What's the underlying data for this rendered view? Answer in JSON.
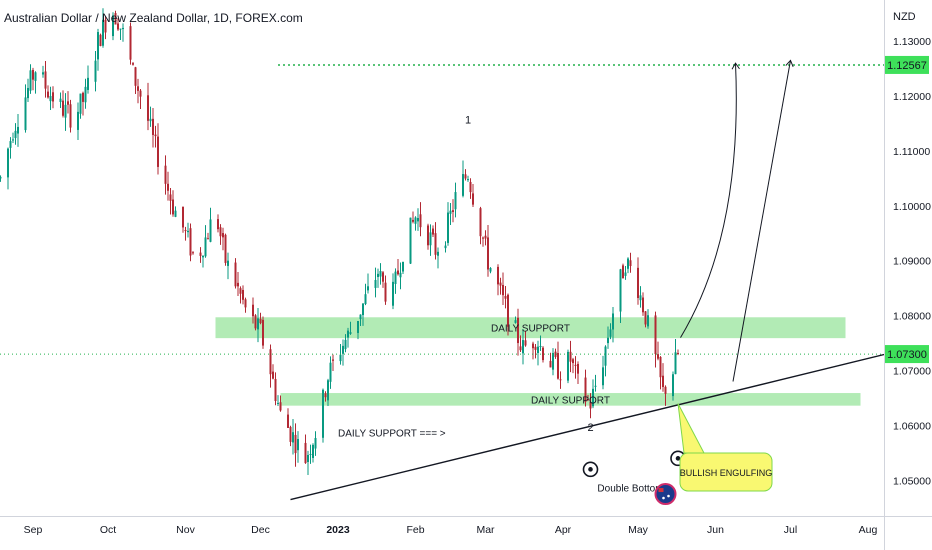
{
  "header": {
    "title": "Australian Dollar / New Zealand Dollar, 1D, FOREX.com",
    "currency": "NZD"
  },
  "colors": {
    "bull": "#089981",
    "bear": "#b22833",
    "zone": "#a5e8a8",
    "target_line": "#22b14c",
    "price_label": "#3ee05a",
    "callout": "#f9f871"
  },
  "chart_data": {
    "type": "candlestick",
    "symbol": "AUDNZD",
    "timeframe": "1D",
    "y_axis": {
      "ylim": [
        1.0435,
        1.1375
      ],
      "ticks": [
        "1.13000",
        "1.12000",
        "1.11000",
        "1.10000",
        "1.09000",
        "1.08000",
        "1.07000",
        "1.06000",
        "1.05000"
      ]
    },
    "x_axis": {
      "ticks": [
        {
          "label": "Sep",
          "date": "2022-09-01"
        },
        {
          "label": "Oct",
          "date": "2022-10-01"
        },
        {
          "label": "Nov",
          "date": "2022-11-01"
        },
        {
          "label": "Dec",
          "date": "2022-12-01"
        },
        {
          "label": "2023",
          "date": "2023-01-01"
        },
        {
          "label": "Feb",
          "date": "2023-02-01"
        },
        {
          "label": "Mar",
          "date": "2023-03-01"
        },
        {
          "label": "Apr",
          "date": "2023-04-01"
        },
        {
          "label": "May",
          "date": "2023-05-01"
        },
        {
          "label": "Jun",
          "date": "2023-06-01"
        },
        {
          "label": "Jul",
          "date": "2023-07-01"
        },
        {
          "label": "Aug",
          "date": "2023-08-01"
        }
      ]
    },
    "price_path": [
      [
        "2022-08-19",
        1.105
      ],
      [
        "2022-08-24",
        1.114
      ],
      [
        "2022-08-29",
        1.12
      ],
      [
        "2022-09-02",
        1.125
      ],
      [
        "2022-09-07",
        1.121
      ],
      [
        "2022-09-12",
        1.118
      ],
      [
        "2022-09-17",
        1.116
      ],
      [
        "2022-09-22",
        1.12
      ],
      [
        "2022-09-27",
        1.13
      ],
      [
        "2022-10-02",
        1.136
      ],
      [
        "2022-10-05",
        1.134
      ],
      [
        "2022-10-08",
        1.13
      ],
      [
        "2022-10-11",
        1.124
      ],
      [
        "2022-10-15",
        1.119
      ],
      [
        "2022-10-19",
        1.112
      ],
      [
        "2022-10-23",
        1.106
      ],
      [
        "2022-10-27",
        1.1
      ],
      [
        "2022-10-31",
        1.096
      ],
      [
        "2022-11-05",
        1.09
      ],
      [
        "2022-11-09",
        1.094
      ],
      [
        "2022-11-13",
        1.099
      ],
      [
        "2022-11-17",
        1.09
      ],
      [
        "2022-11-21",
        1.086
      ],
      [
        "2022-11-26",
        1.08
      ],
      [
        "2022-12-01",
        1.077
      ],
      [
        "2022-12-05",
        1.07
      ],
      [
        "2022-12-09",
        1.062
      ],
      [
        "2022-12-14",
        1.058
      ],
      [
        "2022-12-19",
        1.054
      ],
      [
        "2022-12-24",
        1.06
      ],
      [
        "2022-12-28",
        1.069
      ],
      [
        "2023-01-02",
        1.074
      ],
      [
        "2023-01-07",
        1.078
      ],
      [
        "2023-01-12",
        1.083
      ],
      [
        "2023-01-17",
        1.088
      ],
      [
        "2023-01-22",
        1.082
      ],
      [
        "2023-01-27",
        1.092
      ],
      [
        "2023-02-01",
        1.098
      ],
      [
        "2023-02-05",
        1.096
      ],
      [
        "2023-02-09",
        1.092
      ],
      [
        "2023-02-13",
        1.095
      ],
      [
        "2023-02-18",
        1.103
      ],
      [
        "2023-02-22",
        1.106
      ],
      [
        "2023-02-26",
        1.098
      ],
      [
        "2023-03-02",
        1.09
      ],
      [
        "2023-03-06",
        1.085
      ],
      [
        "2023-03-11",
        1.079
      ],
      [
        "2023-03-16",
        1.074
      ],
      [
        "2023-03-21",
        1.076
      ],
      [
        "2023-03-26",
        1.072
      ],
      [
        "2023-03-31",
        1.07
      ],
      [
        "2023-04-04",
        1.072
      ],
      [
        "2023-04-08",
        1.066
      ],
      [
        "2023-04-12",
        1.064
      ],
      [
        "2023-04-17",
        1.072
      ],
      [
        "2023-04-22",
        1.083
      ],
      [
        "2023-04-26",
        1.09
      ],
      [
        "2023-04-30",
        1.087
      ],
      [
        "2023-05-04",
        1.08
      ],
      [
        "2023-05-08",
        1.072
      ],
      [
        "2023-05-11",
        1.066
      ],
      [
        "2023-05-15",
        1.07
      ],
      [
        "2023-05-17",
        1.073
      ]
    ],
    "zones": [
      {
        "label": "DAILY SUPPORT",
        "from_date": "2022-11-13",
        "to_date": "2023-07-23",
        "low": 1.0759,
        "high": 1.0797
      },
      {
        "label": "DAILY SUPPORT",
        "from_date": "2022-12-09",
        "to_date": "2023-07-29",
        "low": 1.0636,
        "high": 1.0659
      }
    ],
    "trendline": {
      "from": [
        "2022-12-13",
        1.0465
      ],
      "to": [
        "2023-08-10",
        1.0732
      ]
    },
    "target": {
      "level": 1.12567,
      "from_date": "2022-12-08",
      "label": "1.12567"
    },
    "current_price": {
      "level": 1.073,
      "label": "1.07300"
    },
    "projections": [
      {
        "from": [
          "2023-05-18",
          1.076
        ],
        "ctrl": [
          "2023-06-12",
          1.095
        ],
        "to": [
          "2023-06-09",
          1.126
        ]
      },
      {
        "from": [
          "2023-06-08",
          1.068
        ],
        "to": [
          "2023-07-01",
          1.1265
        ]
      }
    ],
    "annotations": [
      {
        "text": "1",
        "date": "2023-02-22",
        "price": 1.115
      },
      {
        "text": "2",
        "date": "2023-04-12",
        "price": 1.059
      },
      {
        "text": "DAILY SUPPORT === >",
        "date": "2023-01-01",
        "price": 1.058
      },
      {
        "text": "Double Bottom",
        "date": "2023-04-28",
        "price": 1.048
      }
    ],
    "markers": [
      {
        "date": "2023-04-12",
        "price": 1.052
      },
      {
        "date": "2023-05-17",
        "price": 1.054
      }
    ],
    "callout": {
      "text": "BULLISH ENGULFING",
      "pointer": [
        "2023-05-17",
        1.064
      ]
    },
    "flag_icon": {
      "date": "2023-05-12",
      "price": 1.0475
    },
    "grid": false
  }
}
